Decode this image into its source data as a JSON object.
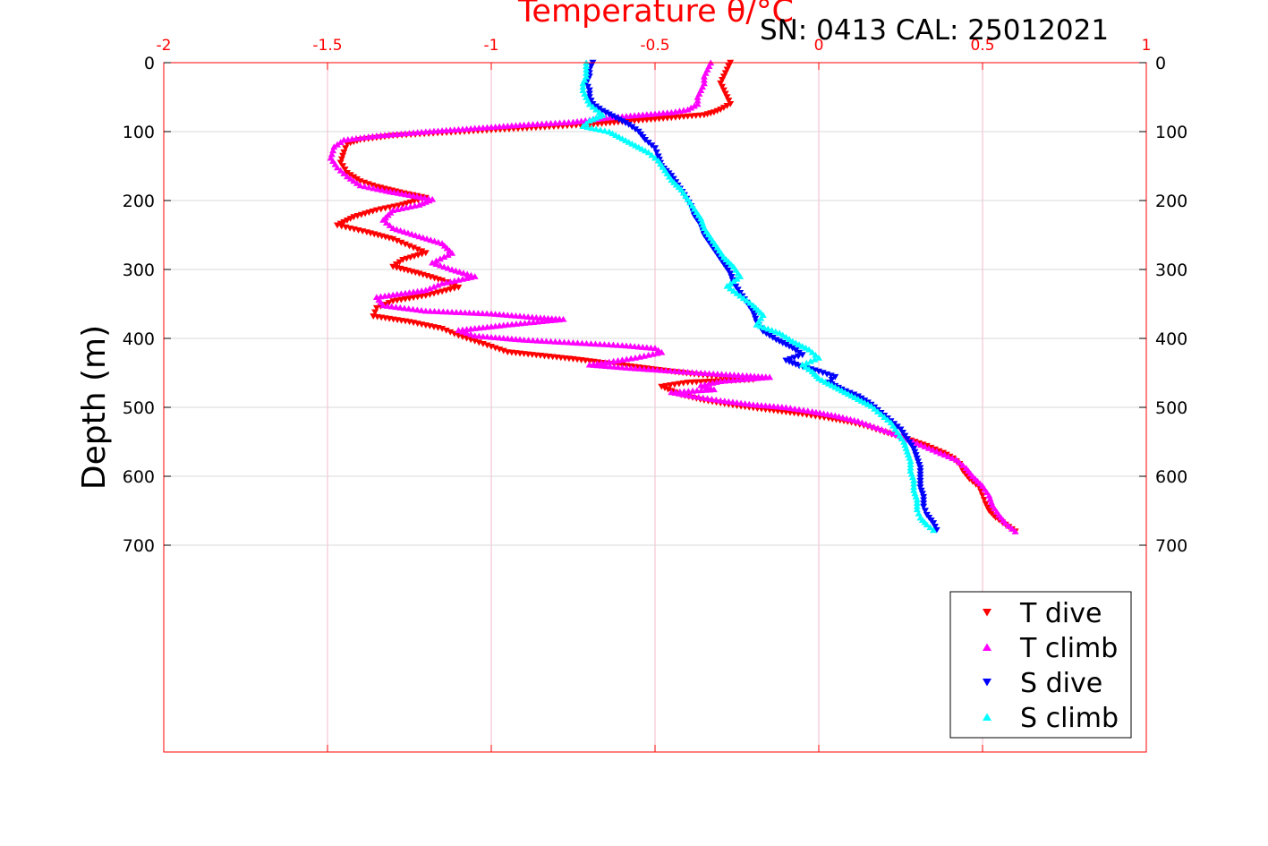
{
  "chart_data": {
    "type": "scatter",
    "title": "SN: 0413  CAL: 25012021",
    "xlabel": "Temperature θ/°C",
    "ylabel": "Depth (m)",
    "xlim": [
      -2,
      1
    ],
    "ylim": [
      0,
      1000
    ],
    "y_reversed": true,
    "x_axis_position": "top",
    "x_ticks": [
      "-2",
      "-1.5",
      "-1",
      "-0.5",
      "0",
      "0.5",
      "1"
    ],
    "y_ticks": [
      "0",
      "100",
      "200",
      "300",
      "400",
      "500",
      "600",
      "700"
    ],
    "grid": true,
    "legend_position": "bottom-right",
    "colors": {
      "axis_top": "#ff0000",
      "grid_x": "#f5b8c8",
      "grid_y": "#d9d9d9"
    },
    "series": [
      {
        "name": "T dive",
        "color": "#ff0000",
        "marker": "triangle-down",
        "points": [
          [
            -0.27,
            0
          ],
          [
            -0.28,
            10
          ],
          [
            -0.29,
            20
          ],
          [
            -0.3,
            30
          ],
          [
            -0.29,
            40
          ],
          [
            -0.28,
            50
          ],
          [
            -0.27,
            60
          ],
          [
            -0.3,
            68
          ],
          [
            -0.32,
            72
          ],
          [
            -0.35,
            76
          ],
          [
            -0.4,
            78
          ],
          [
            -0.5,
            82
          ],
          [
            -0.6,
            86
          ],
          [
            -0.7,
            90
          ],
          [
            -0.85,
            94
          ],
          [
            -1.0,
            98
          ],
          [
            -1.15,
            102
          ],
          [
            -1.3,
            106
          ],
          [
            -1.4,
            112
          ],
          [
            -1.44,
            118
          ],
          [
            -1.45,
            130
          ],
          [
            -1.46,
            145
          ],
          [
            -1.44,
            160
          ],
          [
            -1.4,
            172
          ],
          [
            -1.35,
            180
          ],
          [
            -1.28,
            188
          ],
          [
            -1.2,
            196
          ],
          [
            -1.27,
            206
          ],
          [
            -1.35,
            214
          ],
          [
            -1.42,
            224
          ],
          [
            -1.47,
            236
          ],
          [
            -1.38,
            246
          ],
          [
            -1.3,
            256
          ],
          [
            -1.25,
            266
          ],
          [
            -1.2,
            276
          ],
          [
            -1.27,
            286
          ],
          [
            -1.3,
            296
          ],
          [
            -1.22,
            306
          ],
          [
            -1.15,
            316
          ],
          [
            -1.1,
            326
          ],
          [
            -1.2,
            338
          ],
          [
            -1.3,
            346
          ],
          [
            -1.35,
            356
          ],
          [
            -1.36,
            368
          ],
          [
            -1.25,
            376
          ],
          [
            -1.15,
            386
          ],
          [
            -1.1,
            396
          ],
          [
            -1.05,
            404
          ],
          [
            -1.0,
            412
          ],
          [
            -0.95,
            420
          ],
          [
            -0.85,
            425
          ],
          [
            -0.75,
            430
          ],
          [
            -0.65,
            436
          ],
          [
            -0.55,
            442
          ],
          [
            -0.45,
            448
          ],
          [
            -0.38,
            452
          ],
          [
            -0.3,
            456
          ],
          [
            -0.2,
            460
          ],
          [
            -0.4,
            464
          ],
          [
            -0.48,
            470
          ],
          [
            -0.45,
            476
          ],
          [
            -0.42,
            482
          ],
          [
            -0.35,
            490
          ],
          [
            -0.25,
            498
          ],
          [
            -0.15,
            504
          ],
          [
            -0.05,
            510
          ],
          [
            0.03,
            516
          ],
          [
            0.1,
            522
          ],
          [
            0.15,
            528
          ],
          [
            0.2,
            536
          ],
          [
            0.27,
            546
          ],
          [
            0.33,
            556
          ],
          [
            0.38,
            566
          ],
          [
            0.41,
            574
          ],
          [
            0.43,
            582
          ],
          [
            0.44,
            592
          ],
          [
            0.46,
            604
          ],
          [
            0.49,
            616
          ],
          [
            0.5,
            628
          ],
          [
            0.51,
            640
          ],
          [
            0.52,
            650
          ],
          [
            0.54,
            660
          ],
          [
            0.57,
            670
          ],
          [
            0.6,
            680
          ]
        ]
      },
      {
        "name": "T climb",
        "color": "#ff00ff",
        "marker": "triangle-up",
        "points": [
          [
            -0.33,
            0
          ],
          [
            -0.34,
            10
          ],
          [
            -0.35,
            20
          ],
          [
            -0.35,
            30
          ],
          [
            -0.36,
            40
          ],
          [
            -0.37,
            50
          ],
          [
            -0.37,
            60
          ],
          [
            -0.4,
            68
          ],
          [
            -0.45,
            72
          ],
          [
            -0.55,
            76
          ],
          [
            -0.65,
            80
          ],
          [
            -0.75,
            86
          ],
          [
            -0.9,
            90
          ],
          [
            -1.05,
            95
          ],
          [
            -1.2,
            100
          ],
          [
            -1.35,
            106
          ],
          [
            -1.45,
            112
          ],
          [
            -1.48,
            122
          ],
          [
            -1.49,
            138
          ],
          [
            -1.47,
            152
          ],
          [
            -1.44,
            165
          ],
          [
            -1.4,
            178
          ],
          [
            -1.32,
            186
          ],
          [
            -1.25,
            192
          ],
          [
            -1.18,
            198
          ],
          [
            -1.22,
            206
          ],
          [
            -1.3,
            214
          ],
          [
            -1.33,
            228
          ],
          [
            -1.3,
            240
          ],
          [
            -1.22,
            252
          ],
          [
            -1.15,
            262
          ],
          [
            -1.12,
            276
          ],
          [
            -1.18,
            290
          ],
          [
            -1.12,
            300
          ],
          [
            -1.05,
            310
          ],
          [
            -1.15,
            320
          ],
          [
            -1.2,
            330
          ],
          [
            -1.35,
            340
          ],
          [
            -1.33,
            352
          ],
          [
            -1.2,
            360
          ],
          [
            -1.0,
            364
          ],
          [
            -0.85,
            370
          ],
          [
            -0.78,
            372
          ],
          [
            -0.95,
            380
          ],
          [
            -1.1,
            388
          ],
          [
            -1.05,
            396
          ],
          [
            -0.9,
            402
          ],
          [
            -0.75,
            406
          ],
          [
            -0.6,
            410
          ],
          [
            -0.5,
            414
          ],
          [
            -0.48,
            420
          ],
          [
            -0.56,
            428
          ],
          [
            -0.64,
            434
          ],
          [
            -0.7,
            438
          ],
          [
            -0.6,
            442
          ],
          [
            -0.48,
            446
          ],
          [
            -0.36,
            450
          ],
          [
            -0.22,
            454
          ],
          [
            -0.15,
            456
          ],
          [
            -0.3,
            462
          ],
          [
            -0.36,
            468
          ],
          [
            -0.32,
            474
          ],
          [
            -0.45,
            478
          ],
          [
            -0.38,
            484
          ],
          [
            -0.3,
            490
          ],
          [
            -0.2,
            496
          ],
          [
            -0.1,
            500
          ],
          [
            -0.02,
            506
          ],
          [
            0.05,
            512
          ],
          [
            0.12,
            520
          ],
          [
            0.18,
            530
          ],
          [
            0.24,
            540
          ],
          [
            0.3,
            552
          ],
          [
            0.36,
            564
          ],
          [
            0.42,
            576
          ],
          [
            0.45,
            588
          ],
          [
            0.47,
            600
          ],
          [
            0.5,
            614
          ],
          [
            0.52,
            628
          ],
          [
            0.53,
            642
          ],
          [
            0.55,
            656
          ],
          [
            0.57,
            668
          ],
          [
            0.6,
            680
          ]
        ]
      },
      {
        "name": "S dive",
        "color": "#0000ff",
        "marker": "triangle-down",
        "points": [
          [
            -0.69,
            0
          ],
          [
            -0.7,
            10
          ],
          [
            -0.7,
            20
          ],
          [
            -0.71,
            30
          ],
          [
            -0.7,
            40
          ],
          [
            -0.7,
            50
          ],
          [
            -0.69,
            60
          ],
          [
            -0.66,
            70
          ],
          [
            -0.62,
            80
          ],
          [
            -0.58,
            90
          ],
          [
            -0.55,
            100
          ],
          [
            -0.53,
            112
          ],
          [
            -0.5,
            124
          ],
          [
            -0.49,
            136
          ],
          [
            -0.48,
            150
          ],
          [
            -0.45,
            164
          ],
          [
            -0.43,
            178
          ],
          [
            -0.41,
            192
          ],
          [
            -0.39,
            208
          ],
          [
            -0.38,
            222
          ],
          [
            -0.36,
            236
          ],
          [
            -0.35,
            250
          ],
          [
            -0.33,
            264
          ],
          [
            -0.31,
            278
          ],
          [
            -0.29,
            292
          ],
          [
            -0.27,
            306
          ],
          [
            -0.26,
            320
          ],
          [
            -0.24,
            334
          ],
          [
            -0.22,
            348
          ],
          [
            -0.2,
            362
          ],
          [
            -0.19,
            376
          ],
          [
            -0.17,
            390
          ],
          [
            -0.13,
            402
          ],
          [
            -0.08,
            414
          ],
          [
            -0.05,
            424
          ],
          [
            -0.1,
            432
          ],
          [
            -0.06,
            440
          ],
          [
            0.0,
            448
          ],
          [
            0.05,
            456
          ],
          [
            0.03,
            464
          ],
          [
            0.07,
            474
          ],
          [
            0.12,
            484
          ],
          [
            0.16,
            496
          ],
          [
            0.19,
            508
          ],
          [
            0.22,
            520
          ],
          [
            0.25,
            532
          ],
          [
            0.27,
            546
          ],
          [
            0.29,
            560
          ],
          [
            0.3,
            574
          ],
          [
            0.31,
            588
          ],
          [
            0.31,
            602
          ],
          [
            0.31,
            616
          ],
          [
            0.32,
            630
          ],
          [
            0.32,
            644
          ],
          [
            0.33,
            656
          ],
          [
            0.35,
            668
          ],
          [
            0.36,
            678
          ]
        ]
      },
      {
        "name": "S climb",
        "color": "#00ffff",
        "marker": "triangle-up",
        "points": [
          [
            -0.71,
            0
          ],
          [
            -0.71,
            10
          ],
          [
            -0.71,
            20
          ],
          [
            -0.72,
            30
          ],
          [
            -0.72,
            40
          ],
          [
            -0.71,
            50
          ],
          [
            -0.7,
            60
          ],
          [
            -0.68,
            68
          ],
          [
            -0.66,
            76
          ],
          [
            -0.7,
            84
          ],
          [
            -0.72,
            92
          ],
          [
            -0.64,
            100
          ],
          [
            -0.6,
            110
          ],
          [
            -0.56,
            120
          ],
          [
            -0.52,
            130
          ],
          [
            -0.49,
            142
          ],
          [
            -0.47,
            156
          ],
          [
            -0.45,
            170
          ],
          [
            -0.42,
            184
          ],
          [
            -0.4,
            198
          ],
          [
            -0.38,
            212
          ],
          [
            -0.36,
            226
          ],
          [
            -0.35,
            240
          ],
          [
            -0.33,
            254
          ],
          [
            -0.31,
            268
          ],
          [
            -0.29,
            282
          ],
          [
            -0.26,
            296
          ],
          [
            -0.24,
            310
          ],
          [
            -0.28,
            324
          ],
          [
            -0.24,
            338
          ],
          [
            -0.2,
            352
          ],
          [
            -0.17,
            366
          ],
          [
            -0.19,
            380
          ],
          [
            -0.12,
            392
          ],
          [
            -0.08,
            404
          ],
          [
            -0.03,
            416
          ],
          [
            0.0,
            428
          ],
          [
            -0.05,
            438
          ],
          [
            -0.02,
            448
          ],
          [
            0.0,
            458
          ],
          [
            0.04,
            468
          ],
          [
            0.08,
            478
          ],
          [
            0.12,
            488
          ],
          [
            0.16,
            498
          ],
          [
            0.19,
            510
          ],
          [
            0.22,
            522
          ],
          [
            0.24,
            536
          ],
          [
            0.26,
            550
          ],
          [
            0.27,
            564
          ],
          [
            0.28,
            578
          ],
          [
            0.28,
            592
          ],
          [
            0.29,
            606
          ],
          [
            0.29,
            620
          ],
          [
            0.3,
            634
          ],
          [
            0.3,
            648
          ],
          [
            0.31,
            660
          ],
          [
            0.33,
            670
          ],
          [
            0.35,
            678
          ]
        ]
      }
    ]
  }
}
